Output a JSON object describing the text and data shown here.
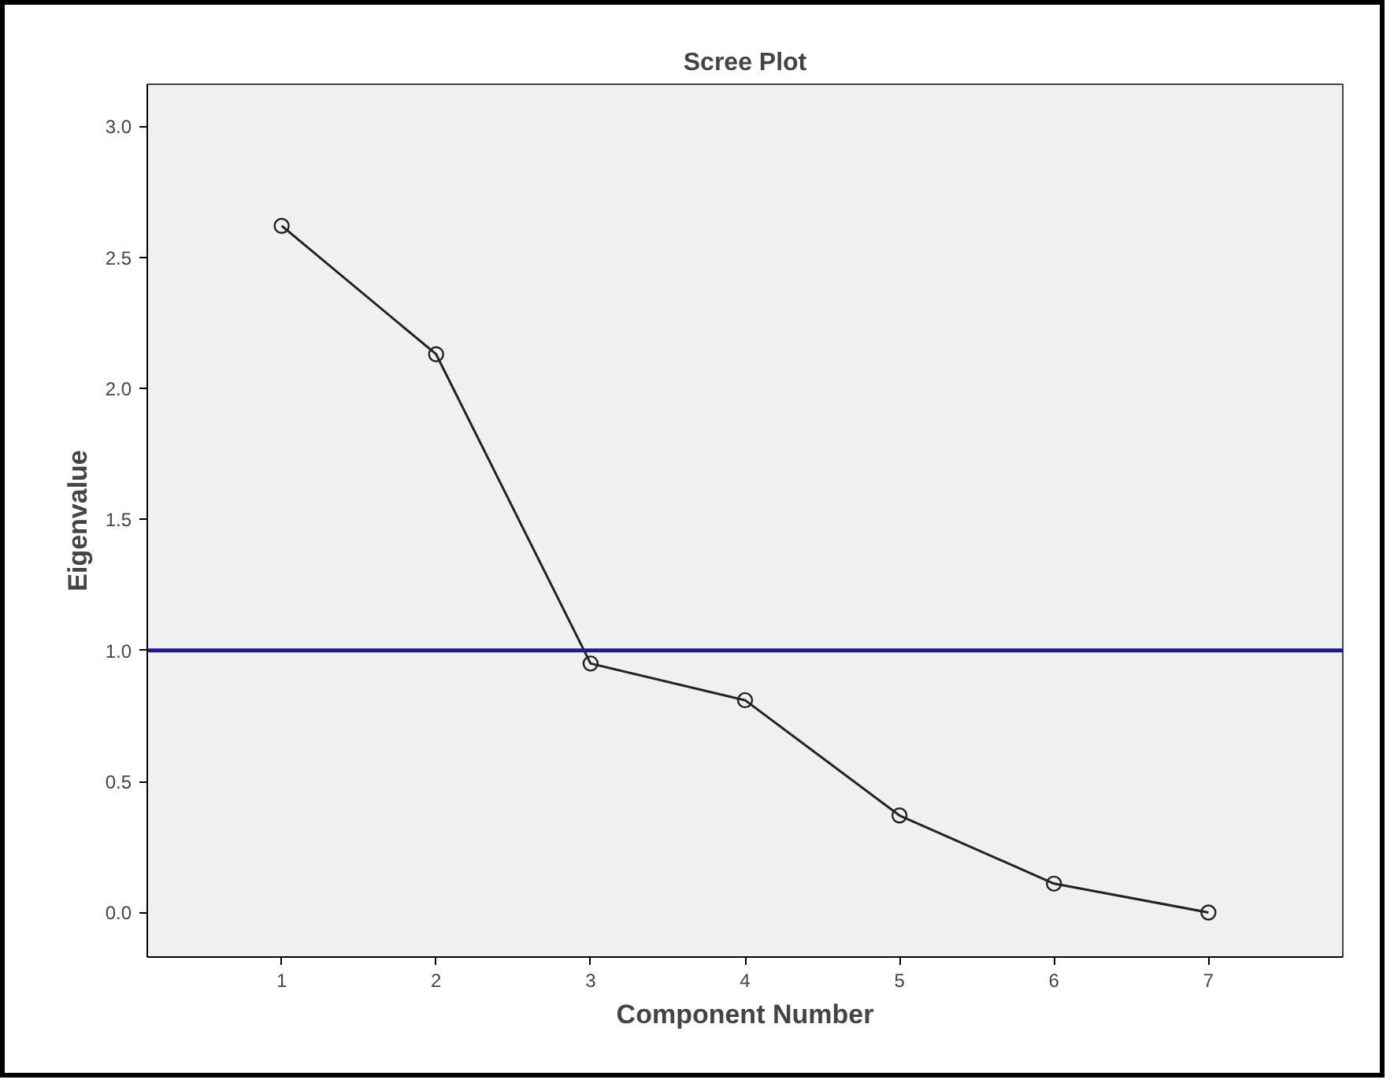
{
  "chart_data": {
    "type": "line",
    "title": "Scree Plot",
    "xlabel": "Component Number",
    "ylabel": "Eigenvalue",
    "x": [
      1,
      2,
      3,
      4,
      5,
      6,
      7
    ],
    "series": [
      {
        "color": "#222222",
        "values": [
          2.62,
          2.13,
          0.95,
          0.81,
          0.37,
          0.11,
          0.0
        ]
      }
    ],
    "xlim": [
      0.13,
      7.87
    ],
    "xticks": [
      1,
      2,
      3,
      4,
      5,
      6,
      7
    ],
    "ylim": [
      -0.17,
      3.16
    ],
    "yticks": [
      {
        "value": 0,
        "label": "0.0"
      },
      {
        "value": 0.5,
        "label": "0.5"
      },
      {
        "value": 1,
        "label": "1.0"
      },
      {
        "value": 1.5,
        "label": "1.5"
      },
      {
        "value": 2,
        "label": "2.0"
      },
      {
        "value": 2.5,
        "label": "2.5"
      },
      {
        "value": 3,
        "label": "3.0"
      }
    ],
    "ref_lines": [
      {
        "axis": "y",
        "value": 1.0,
        "color": "#1a1a8c"
      }
    ],
    "marker": "circle",
    "line_style": "solid",
    "grid": false
  }
}
